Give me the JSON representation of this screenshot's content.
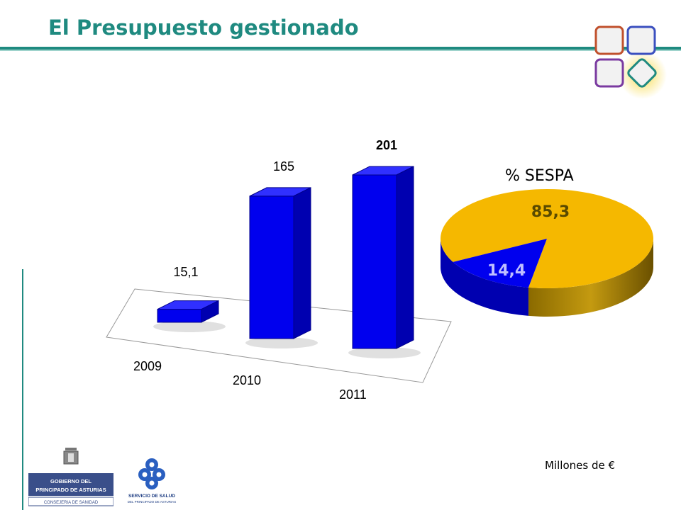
{
  "header": {
    "title": "El Presupuesto gestionado"
  },
  "colors": {
    "accent": "#1f8a80",
    "bar": "#0000ee",
    "pie_major": "#f5b800",
    "pie_minor": "#0000ee"
  },
  "chart_data": [
    {
      "type": "bar",
      "categories": [
        "2009",
        "2010",
        "2011"
      ],
      "values": [
        15.1,
        165,
        201
      ],
      "value_labels": [
        "15,1",
        "165",
        "201"
      ],
      "style": "3d"
    },
    {
      "type": "pie",
      "title": "% SESPA",
      "slices": [
        {
          "label": "85,3",
          "value": 85.3
        },
        {
          "label": "14,4",
          "value": 14.4
        }
      ],
      "style": "3d"
    }
  ],
  "footer": {
    "units": "Millones de €",
    "logo1_lines": [
      "GOBIERNO DEL",
      "PRINCIPADO DE ASTURIAS",
      "CONSEJERIA DE SANIDAD"
    ],
    "logo2_lines": [
      "SERVICIO DE SALUD",
      "DEL PRINCIPADO DE ASTURIAS"
    ]
  }
}
